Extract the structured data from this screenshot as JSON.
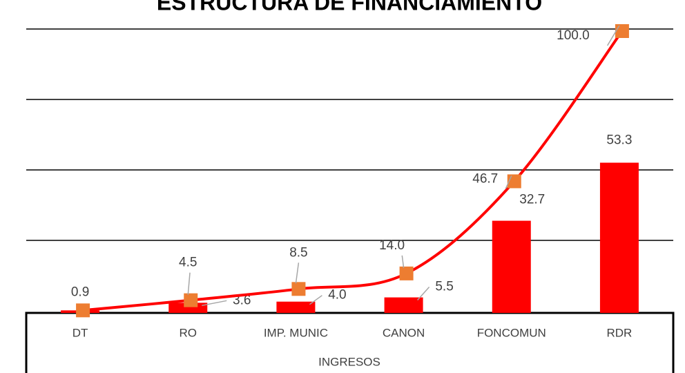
{
  "chart_data": {
    "type": "bar",
    "title": "ESTRUCTURA DE FINANCIAMIENTO",
    "x_label": "INGRESOS",
    "categories": [
      "DT",
      "RO",
      "IMP. MUNIC",
      "CANON",
      "FONCOMUN",
      "RDR"
    ],
    "series": [
      {
        "type": "bar",
        "color": "#ff0000",
        "values": [
          0.9,
          3.6,
          4.0,
          5.5,
          32.7,
          53.3
        ],
        "value_labels": [
          "0.9",
          "3.6",
          "4.0",
          "5.5",
          "32.7",
          "53.3"
        ]
      },
      {
        "type": "line",
        "color": "#ff0000",
        "marker_color": "#ed7d31",
        "values": [
          0.9,
          4.5,
          8.5,
          14.0,
          46.7,
          100.0
        ],
        "value_labels": [
          "0.9",
          "4.5",
          "8.5",
          "14.0",
          "46.7",
          "100.0"
        ]
      }
    ],
    "ylim": [
      0,
      100
    ],
    "yticks": [
      0,
      25,
      50,
      75,
      100
    ],
    "grid": true
  }
}
